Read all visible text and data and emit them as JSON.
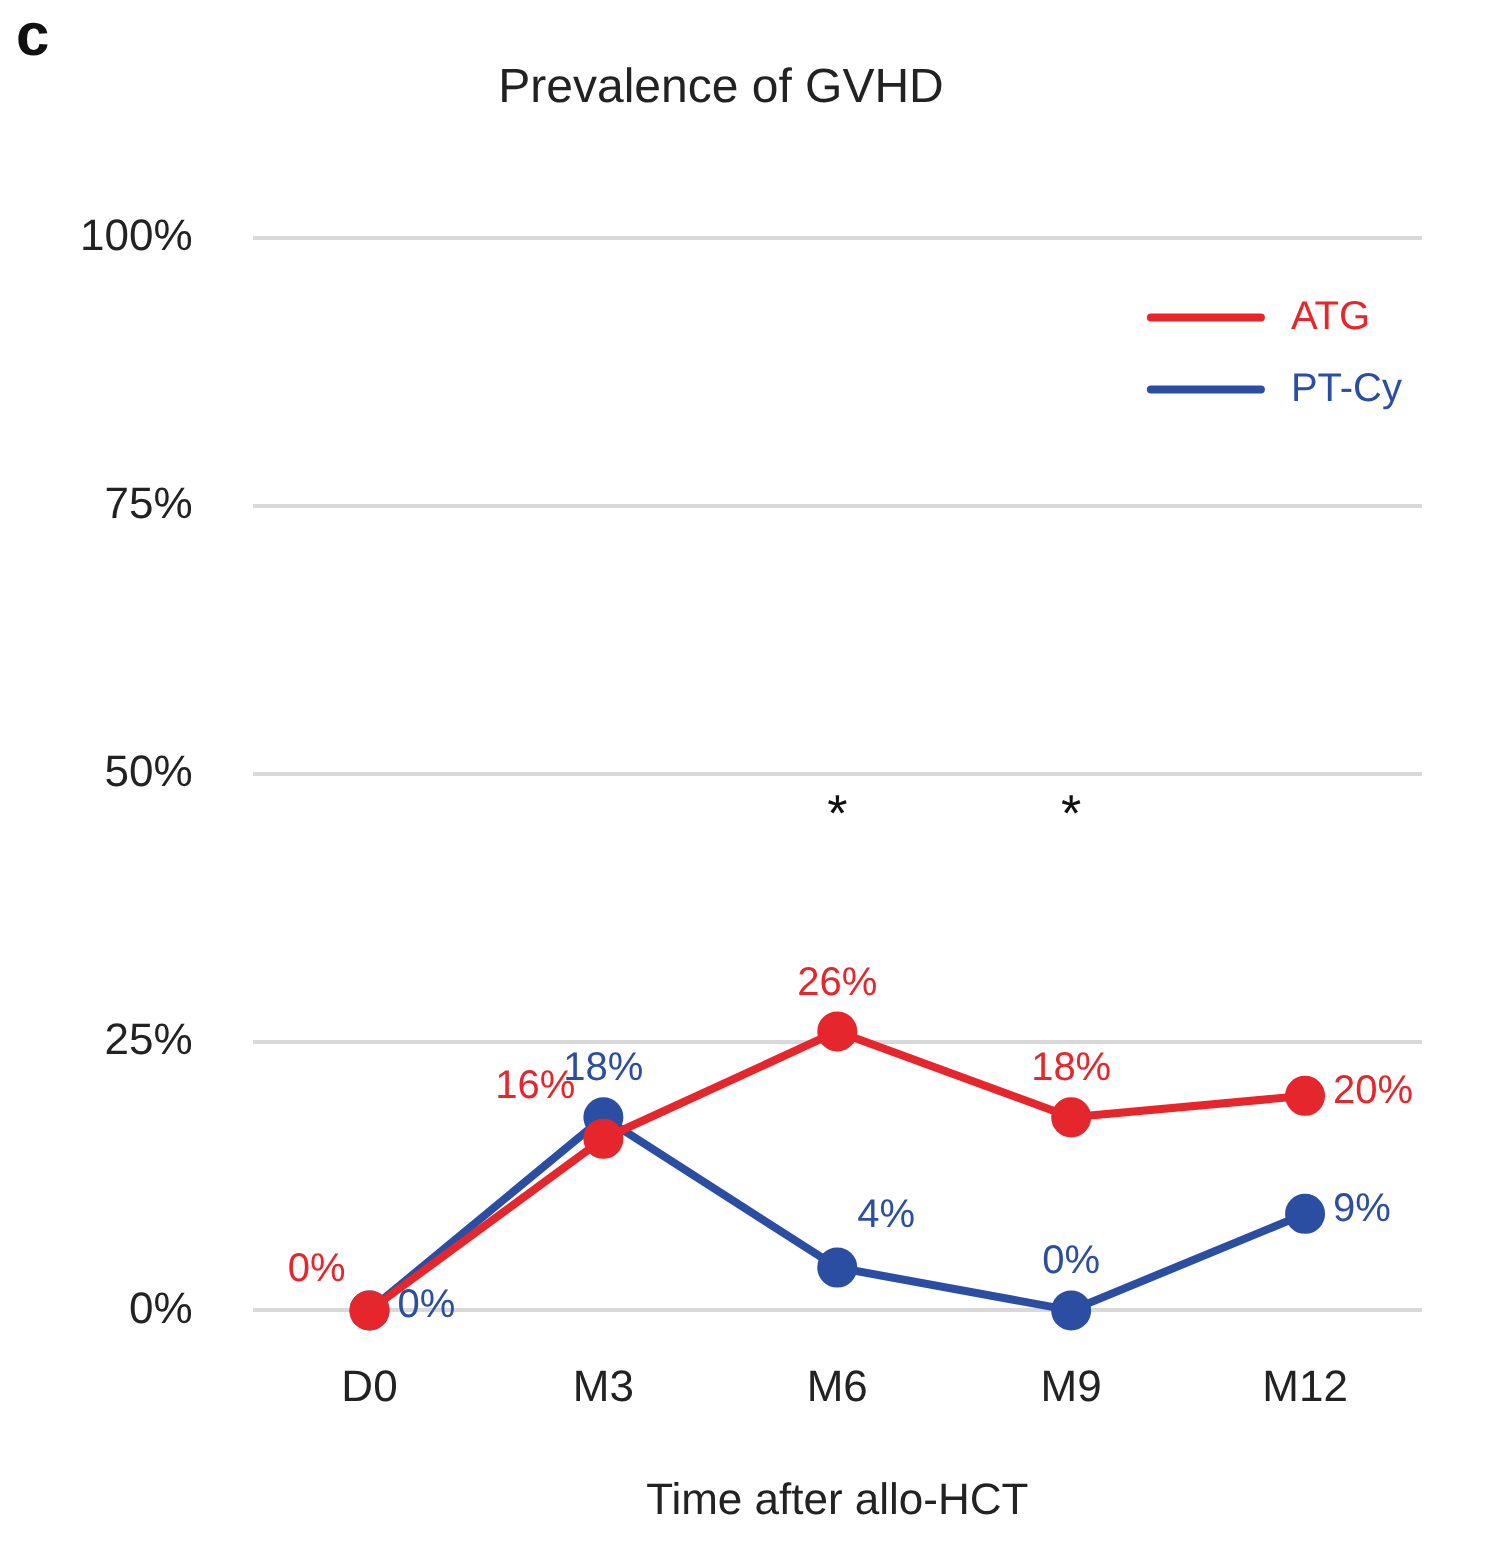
{
  "chart_data": {
    "type": "line",
    "title": "Prevalence of GVHD",
    "xlabel": "Time after allo-HCT",
    "categories": [
      "D0",
      "M3",
      "M6",
      "M9",
      "M12"
    ],
    "series": [
      {
        "name": "ATG",
        "color": "#e5262d",
        "values": [
          0,
          16,
          26,
          18,
          20
        ],
        "value_labels": [
          "0%",
          "16%",
          "26%",
          "18%",
          "20%"
        ]
      },
      {
        "name": "PT-Cy",
        "color": "#2b4ea2",
        "values": [
          0,
          18,
          4,
          0,
          9
        ],
        "value_labels": [
          "0%",
          "18%",
          "4%",
          "0%",
          "9%"
        ]
      }
    ],
    "ylim": [
      0,
      100
    ],
    "yticks": [
      {
        "value": 0,
        "label": "0%"
      },
      {
        "value": 25,
        "label": "25%"
      },
      {
        "value": 50,
        "label": "50%"
      },
      {
        "value": 75,
        "label": "75%"
      },
      {
        "value": 100,
        "label": "100%"
      }
    ],
    "grid": "y",
    "legend": "top right",
    "marker": "circle",
    "line_style": "solid",
    "annotations": [
      "c",
      "*",
      "*"
    ]
  }
}
